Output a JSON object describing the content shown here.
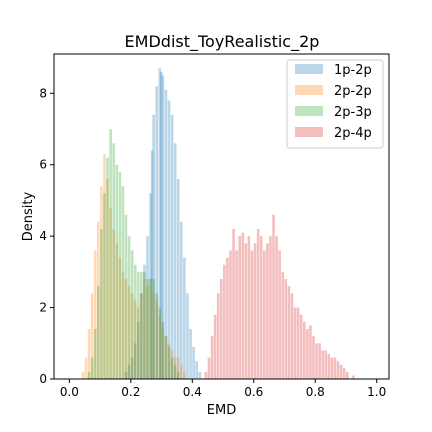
{
  "chart_data": {
    "type": "histogram",
    "title": "EMDdist_ToyRealistic_2p",
    "xlabel": "EMD",
    "ylabel": "Density",
    "xlim": [
      -0.05,
      1.04
    ],
    "ylim": [
      0,
      9.1
    ],
    "xticks": [
      0.0,
      0.2,
      0.4,
      0.6,
      0.8,
      1.0
    ],
    "xtick_labels": [
      "0.0",
      "0.2",
      "0.4",
      "0.6",
      "0.8",
      "1.0"
    ],
    "yticks": [
      0,
      2,
      4,
      6,
      8
    ],
    "ytick_labels": [
      "0",
      "2",
      "4",
      "6",
      "8"
    ],
    "legend_position": "top-right",
    "series": [
      {
        "name": "1p-2p",
        "color": "#1f77b4",
        "bin_width": 0.0085,
        "bins": [
          [
            0.18,
            0.2
          ],
          [
            0.19,
            0.4
          ],
          [
            0.2,
            0.6
          ],
          [
            0.21,
            1.0
          ],
          [
            0.22,
            1.6
          ],
          [
            0.23,
            2.4
          ],
          [
            0.24,
            3.2
          ],
          [
            0.25,
            4.0
          ],
          [
            0.26,
            5.2
          ],
          [
            0.265,
            6.4
          ],
          [
            0.27,
            7.4
          ],
          [
            0.28,
            8.2
          ],
          [
            0.29,
            8.7
          ],
          [
            0.295,
            8.6
          ],
          [
            0.3,
            8.5
          ],
          [
            0.31,
            8.1
          ],
          [
            0.32,
            7.8
          ],
          [
            0.33,
            7.4
          ],
          [
            0.34,
            6.6
          ],
          [
            0.35,
            5.6
          ],
          [
            0.36,
            4.4
          ],
          [
            0.37,
            3.4
          ],
          [
            0.38,
            2.4
          ],
          [
            0.39,
            1.4
          ],
          [
            0.4,
            0.9
          ],
          [
            0.41,
            0.5
          ],
          [
            0.42,
            0.2
          ]
        ]
      },
      {
        "name": "2p-2p",
        "color": "#ff7f0e",
        "bin_width": 0.0085,
        "bins": [
          [
            0.04,
            0.2
          ],
          [
            0.05,
            0.6
          ],
          [
            0.06,
            1.4
          ],
          [
            0.07,
            2.4
          ],
          [
            0.08,
            3.6
          ],
          [
            0.09,
            4.4
          ],
          [
            0.1,
            5.4
          ],
          [
            0.11,
            6.3
          ],
          [
            0.12,
            5.6
          ],
          [
            0.13,
            4.8
          ],
          [
            0.14,
            4.2
          ],
          [
            0.15,
            3.8
          ],
          [
            0.16,
            3.4
          ],
          [
            0.17,
            3.0
          ],
          [
            0.18,
            2.8
          ],
          [
            0.19,
            2.6
          ],
          [
            0.2,
            2.4
          ],
          [
            0.21,
            2.2
          ],
          [
            0.22,
            2.0
          ],
          [
            0.23,
            2.4
          ],
          [
            0.24,
            2.8
          ],
          [
            0.25,
            2.6
          ],
          [
            0.26,
            2.8
          ],
          [
            0.27,
            2.4
          ],
          [
            0.28,
            2.2
          ],
          [
            0.29,
            1.8
          ],
          [
            0.3,
            1.4
          ],
          [
            0.31,
            1.2
          ],
          [
            0.32,
            1.0
          ],
          [
            0.33,
            0.8
          ],
          [
            0.34,
            0.6
          ],
          [
            0.35,
            0.6
          ],
          [
            0.36,
            0.4
          ],
          [
            0.37,
            0.2
          ]
        ]
      },
      {
        "name": "2p-3p",
        "color": "#2ca02c",
        "bin_width": 0.0085,
        "bins": [
          [
            0.06,
            0.2
          ],
          [
            0.07,
            0.6
          ],
          [
            0.08,
            1.4
          ],
          [
            0.09,
            2.6
          ],
          [
            0.1,
            4.2
          ],
          [
            0.11,
            5.2
          ],
          [
            0.12,
            6.2
          ],
          [
            0.13,
            7.0
          ],
          [
            0.14,
            6.6
          ],
          [
            0.15,
            6.0
          ],
          [
            0.16,
            5.8
          ],
          [
            0.17,
            5.4
          ],
          [
            0.18,
            4.6
          ],
          [
            0.19,
            4.0
          ],
          [
            0.2,
            3.6
          ],
          [
            0.21,
            3.2
          ],
          [
            0.22,
            3.0
          ],
          [
            0.23,
            3.0
          ],
          [
            0.24,
            3.0
          ],
          [
            0.25,
            2.8
          ],
          [
            0.26,
            2.8
          ],
          [
            0.27,
            2.8
          ],
          [
            0.28,
            2.4
          ],
          [
            0.29,
            2.0
          ],
          [
            0.3,
            1.6
          ],
          [
            0.31,
            1.2
          ],
          [
            0.32,
            0.9
          ],
          [
            0.33,
            0.6
          ],
          [
            0.34,
            0.4
          ],
          [
            0.35,
            0.2
          ]
        ]
      },
      {
        "name": "2p-4p",
        "color": "#d62728",
        "bin_width": 0.0085,
        "bins": [
          [
            0.44,
            0.2
          ],
          [
            0.45,
            0.6
          ],
          [
            0.46,
            1.2
          ],
          [
            0.47,
            1.8
          ],
          [
            0.48,
            2.4
          ],
          [
            0.49,
            2.8
          ],
          [
            0.5,
            3.2
          ],
          [
            0.51,
            3.4
          ],
          [
            0.52,
            3.6
          ],
          [
            0.53,
            4.2
          ],
          [
            0.54,
            3.6
          ],
          [
            0.55,
            4.0
          ],
          [
            0.56,
            4.1
          ],
          [
            0.57,
            3.8
          ],
          [
            0.58,
            4.0
          ],
          [
            0.59,
            3.6
          ],
          [
            0.6,
            3.8
          ],
          [
            0.61,
            4.2
          ],
          [
            0.62,
            4.0
          ],
          [
            0.63,
            3.6
          ],
          [
            0.64,
            3.8
          ],
          [
            0.65,
            4.0
          ],
          [
            0.66,
            4.6
          ],
          [
            0.67,
            4.0
          ],
          [
            0.68,
            3.6
          ],
          [
            0.69,
            3.0
          ],
          [
            0.7,
            2.8
          ],
          [
            0.71,
            2.6
          ],
          [
            0.72,
            2.4
          ],
          [
            0.73,
            2.0
          ],
          [
            0.74,
            2.0
          ],
          [
            0.75,
            1.8
          ],
          [
            0.76,
            1.6
          ],
          [
            0.77,
            1.4
          ],
          [
            0.78,
            1.5
          ],
          [
            0.79,
            1.2
          ],
          [
            0.8,
            1.0
          ],
          [
            0.81,
            1.0
          ],
          [
            0.82,
            0.8
          ],
          [
            0.83,
            0.8
          ],
          [
            0.84,
            0.7
          ],
          [
            0.85,
            0.6
          ],
          [
            0.86,
            0.6
          ],
          [
            0.87,
            0.5
          ],
          [
            0.88,
            0.4
          ],
          [
            0.89,
            0.3
          ],
          [
            0.9,
            0.2
          ],
          [
            0.92,
            0.1
          ]
        ]
      }
    ]
  }
}
